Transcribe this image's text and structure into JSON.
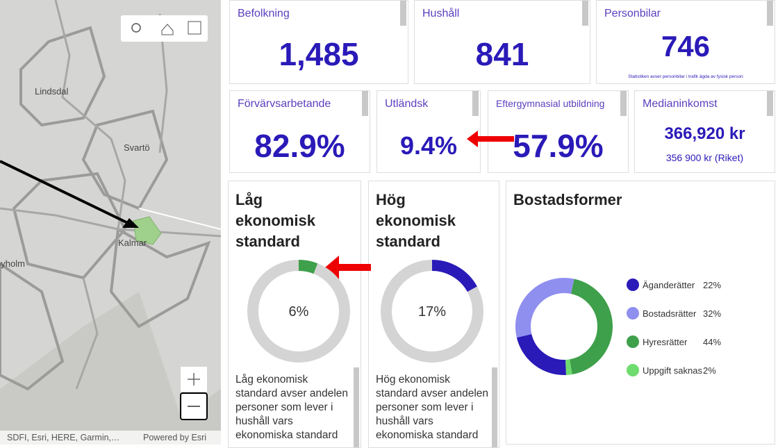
{
  "map": {
    "places": [
      "Lindsdal",
      "Svartö",
      "Kalmar",
      "byholm"
    ],
    "attribution": "SDFI, Esri, HERE, Garmin,…",
    "powered": "Powered by Esri"
  },
  "cards": [
    {
      "title": "Befolkning",
      "value": "1,485"
    },
    {
      "title": "Hushåll",
      "value": "841"
    },
    {
      "title": "Personbilar",
      "value": "746",
      "note": "Statistiken avser personbilar i trafik ägda av fysisk person"
    },
    {
      "title": "Förvärvsarbetande",
      "value": "82.9%"
    },
    {
      "title": "Utländsk",
      "value": "9.4%"
    },
    {
      "title": "Eftergymnasial utbildning",
      "value": "57.9%"
    },
    {
      "title": "Medianinkomst",
      "value": "366,920 kr",
      "note": "356 900 kr (Riket)"
    }
  ],
  "gauges": [
    {
      "title": "Låg ekonomisk standard",
      "value": 6,
      "label": "6%",
      "color": "#3ea04a",
      "description": "Låg ekonomisk standard avser andelen personer som lever i hushåll vars ekonomiska standard"
    },
    {
      "title": "Hög ekonomisk standard",
      "value": 17,
      "label": "17%",
      "color": "#2a1ab8",
      "description": "Hög ekonomisk standard avser andelen personer som lever i hushåll vars ekonomiska standard"
    }
  ],
  "housing": {
    "title": "Bostadsformer",
    "items": [
      {
        "name": "Äganderätter",
        "value": 22,
        "label": "22%",
        "color": "#2a1ab8"
      },
      {
        "name": "Bostadsrätter",
        "value": 32,
        "label": "32%",
        "color": "#8f8ff0"
      },
      {
        "name": "Hyresrätter",
        "value": 44,
        "label": "44%",
        "color": "#3ea04a"
      },
      {
        "name": "Uppgift saknas",
        "value": 2,
        "label": "2%",
        "color": "#6edc6e"
      }
    ]
  }
}
